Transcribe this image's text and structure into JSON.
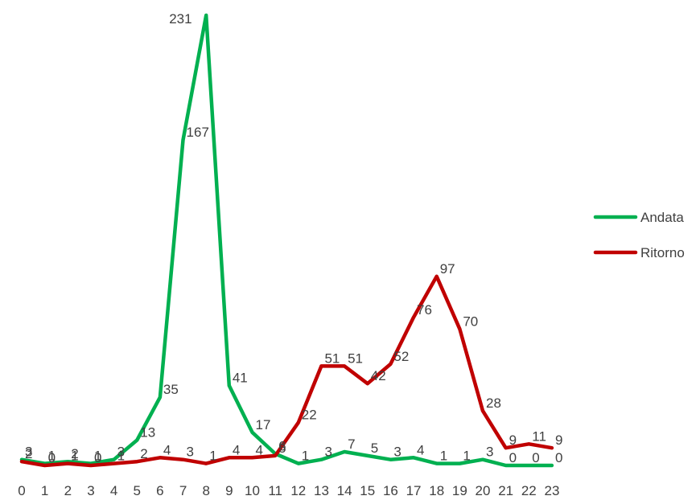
{
  "chart_data": {
    "type": "line",
    "categories": [
      "0",
      "1",
      "2",
      "3",
      "4",
      "5",
      "6",
      "7",
      "8",
      "9",
      "10",
      "11",
      "12",
      "13",
      "14",
      "15",
      "16",
      "17",
      "18",
      "19",
      "20",
      "21",
      "22",
      "23"
    ],
    "series": [
      {
        "name": "Andata",
        "color": "#00b050",
        "values": [
          3,
          1,
          2,
          1,
          3,
          13,
          35,
          167,
          231,
          41,
          17,
          6,
          1,
          3,
          7,
          5,
          3,
          4,
          1,
          1,
          3,
          0,
          0,
          0
        ]
      },
      {
        "name": "Ritorno",
        "color": "#c00000",
        "values": [
          2,
          0,
          1,
          0,
          1,
          2,
          4,
          3,
          1,
          4,
          4,
          5,
          22,
          51,
          51,
          42,
          52,
          76,
          97,
          70,
          28,
          9,
          11,
          9
        ]
      }
    ],
    "title": "",
    "xlabel": "",
    "ylabel": "",
    "ylim": [
      0,
      231
    ],
    "grid": false,
    "legend_position": "right"
  }
}
